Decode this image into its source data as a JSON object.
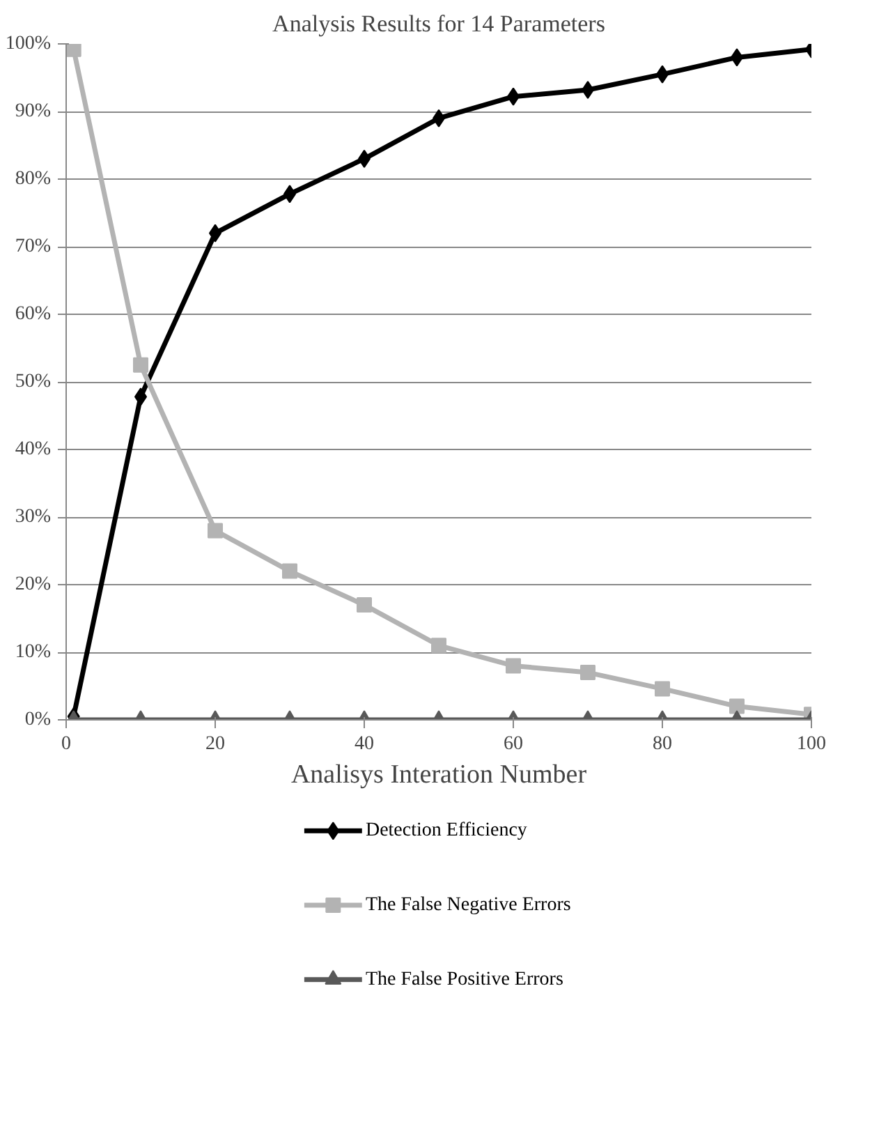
{
  "chart_data": {
    "type": "line",
    "title": "Analysis Results for 14 Parameters",
    "xlabel": "Analisys Interation Number",
    "x": [
      1,
      10,
      20,
      30,
      40,
      50,
      60,
      70,
      80,
      90,
      100
    ],
    "series": [
      {
        "name": "Detection Efficiency",
        "color": "#000000",
        "marker": "diamond",
        "values": [
          0.5,
          47.8,
          72,
          77.8,
          83,
          89,
          92.2,
          93.2,
          95.5,
          98,
          99.2
        ]
      },
      {
        "name": "The False Negative Errors",
        "color": "#b3b3b3",
        "marker": "square",
        "values": [
          99.2,
          52.5,
          28,
          22,
          17,
          11,
          8,
          7,
          4.6,
          2,
          0.8
        ]
      },
      {
        "name": "The False Positive Errors",
        "color": "#595959",
        "marker": "triangle",
        "values": [
          0,
          0,
          0,
          0,
          0,
          0,
          0,
          0,
          0,
          0,
          0
        ]
      }
    ],
    "xlim": [
      0,
      100
    ],
    "xticks": [
      0,
      20,
      40,
      60,
      80,
      100
    ],
    "ylim": [
      0,
      100
    ],
    "yticks": [
      {
        "value": 0,
        "label": "0%"
      },
      {
        "value": 10,
        "label": "10%"
      },
      {
        "value": 20,
        "label": "20%"
      },
      {
        "value": 30,
        "label": "30%"
      },
      {
        "value": 40,
        "label": "40%"
      },
      {
        "value": 50,
        "label": "50%"
      },
      {
        "value": 60,
        "label": "60%"
      },
      {
        "value": 70,
        "label": "70%"
      },
      {
        "value": 80,
        "label": "80%"
      },
      {
        "value": 90,
        "label": "90%"
      },
      {
        "value": 100,
        "label": "100%"
      }
    ],
    "grid": "y",
    "legend": "bottom",
    "line_style": "solid"
  }
}
